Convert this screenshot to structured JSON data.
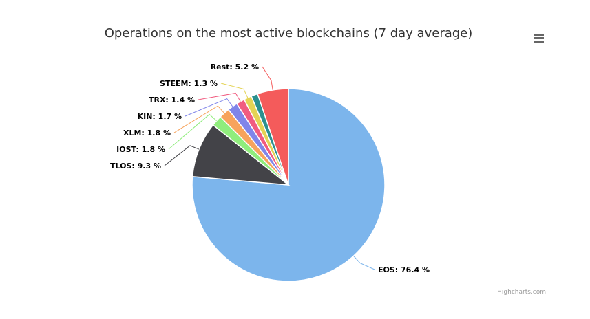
{
  "chart_data": {
    "type": "pie",
    "title": "Operations on the most active blockchains (7 day average)",
    "unit": "%",
    "slices": [
      {
        "name": "EOS",
        "value": 76.4,
        "label": "EOS: 76.4 %",
        "color": "#7cb5ec"
      },
      {
        "name": "TLOS",
        "value": 9.3,
        "label": "TLOS: 9.3 %",
        "color": "#434348"
      },
      {
        "name": "IOST",
        "value": 1.8,
        "label": "IOST: 1.8 %",
        "color": "#90ed7d"
      },
      {
        "name": "XLM",
        "value": 1.8,
        "label": "XLM: 1.8 %",
        "color": "#f7a35c"
      },
      {
        "name": "KIN",
        "value": 1.7,
        "label": "KIN: 1.7 %",
        "color": "#8085e9"
      },
      {
        "name": "TRX",
        "value": 1.4,
        "label": "TRX: 1.4 %",
        "color": "#f15c80"
      },
      {
        "name": "STEEM",
        "value": 1.3,
        "label": "STEEM: 1.3 %",
        "color": "#e4d354"
      },
      {
        "name": "",
        "value": 1.1,
        "label": "",
        "color": "#2b908f"
      },
      {
        "name": "Rest",
        "value": 5.2,
        "label": "Rest: 5.2 %",
        "color": "#f45b5b"
      }
    ]
  },
  "menu": {
    "icon": "hamburger-menu-icon"
  },
  "credits": "Highcharts.com"
}
